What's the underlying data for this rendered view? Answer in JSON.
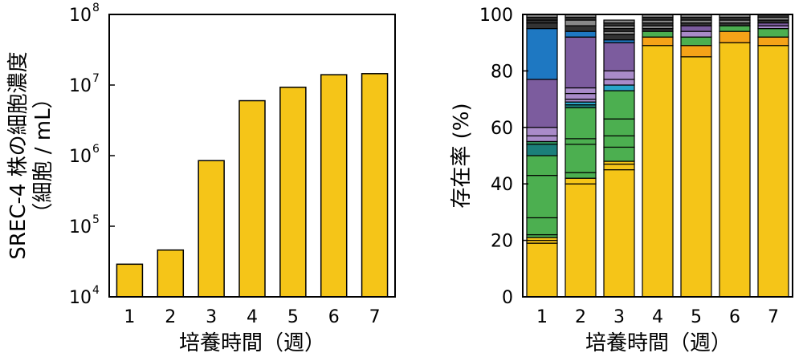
{
  "chart_data": [
    {
      "type": "bar",
      "xlabel": "培養時間（週）",
      "ylabel_line1": "SREC-4 株の細胞濃度",
      "ylabel_line2": "（細胞 / mL）",
      "y_scale": "log",
      "ylim": [
        10000,
        100000000
      ],
      "y_ticks": [
        {
          "base": "10",
          "exp": "4",
          "value": 10000
        },
        {
          "base": "10",
          "exp": "5",
          "value": 100000
        },
        {
          "base": "10",
          "exp": "6",
          "value": 1000000
        },
        {
          "base": "10",
          "exp": "7",
          "value": 10000000
        },
        {
          "base": "10",
          "exp": "8",
          "value": 100000000
        }
      ],
      "categories": [
        "1",
        "2",
        "3",
        "4",
        "5",
        "6",
        "7"
      ],
      "values": [
        29000,
        46000,
        850000,
        6000000,
        9300000,
        14000000,
        14500000
      ],
      "bar_color": "#F5C518",
      "grid": false
    },
    {
      "type": "bar",
      "stacked": true,
      "xlabel": "培養時間（週）",
      "ylabel": "存在率 (%)",
      "ylim": [
        0,
        100
      ],
      "y_ticks": [
        "0",
        "20",
        "40",
        "60",
        "80",
        "100"
      ],
      "categories": [
        "1",
        "2",
        "3",
        "4",
        "5",
        "6",
        "7"
      ],
      "grid": false,
      "stacks": [
        {
          "category": "1",
          "segments": [
            {
              "color": "#F5C518",
              "value": 19
            },
            {
              "color": "#F5C518",
              "value": 1
            },
            {
              "color": "#F5C518",
              "value": 1
            },
            {
              "color": "#4CAF50",
              "value": 1
            },
            {
              "color": "#4CAF50",
              "value": 6
            },
            {
              "color": "#4CAF50",
              "value": 15
            },
            {
              "color": "#4CAF50",
              "value": 7
            },
            {
              "color": "#1B7F7A",
              "value": 4
            },
            {
              "color": "#2E8B57",
              "value": 1
            },
            {
              "color": "#A98BC9",
              "value": 2
            },
            {
              "color": "#A98BC9",
              "value": 3
            },
            {
              "color": "#7C5C9E",
              "value": 17
            },
            {
              "color": "#1E78C2",
              "value": 18
            },
            {
              "color": "#333333",
              "value": 2
            },
            {
              "color": "#333333",
              "value": 1
            },
            {
              "color": "#333333",
              "value": 1
            },
            {
              "color": "#888888",
              "value": 1
            }
          ]
        },
        {
          "category": "2",
          "segments": [
            {
              "color": "#F5C518",
              "value": 40
            },
            {
              "color": "#F5C518",
              "value": 2
            },
            {
              "color": "#4CAF50",
              "value": 2
            },
            {
              "color": "#4CAF50",
              "value": 10
            },
            {
              "color": "#4CAF50",
              "value": 2
            },
            {
              "color": "#4CAF50",
              "value": 11
            },
            {
              "color": "#1B7F7A",
              "value": 1
            },
            {
              "color": "#29A6C9",
              "value": 1
            },
            {
              "color": "#A98BC9",
              "value": 1
            },
            {
              "color": "#A98BC9",
              "value": 2
            },
            {
              "color": "#A98BC9",
              "value": 2
            },
            {
              "color": "#7C5C9E",
              "value": 18
            },
            {
              "color": "#1E78C2",
              "value": 2
            },
            {
              "color": "#333333",
              "value": 2
            },
            {
              "color": "#888888",
              "value": 2
            },
            {
              "color": "#333333",
              "value": 1
            },
            {
              "color": "#888888",
              "value": 1
            }
          ]
        },
        {
          "category": "3",
          "segments": [
            {
              "color": "#F5C518",
              "value": 45
            },
            {
              "color": "#F5C518",
              "value": 2
            },
            {
              "color": "#F5C518",
              "value": 1
            },
            {
              "color": "#4CAF50",
              "value": 5
            },
            {
              "color": "#4CAF50",
              "value": 4
            },
            {
              "color": "#4CAF50",
              "value": 6
            },
            {
              "color": "#4CAF50",
              "value": 10
            },
            {
              "color": "#29A6C9",
              "value": 2
            },
            {
              "color": "#A98BC9",
              "value": 2
            },
            {
              "color": "#A98BC9",
              "value": 3
            },
            {
              "color": "#7C5C9E",
              "value": 10
            },
            {
              "color": "#1E78C2",
              "value": 1
            },
            {
              "color": "#333333",
              "value": 2
            },
            {
              "color": "#888888",
              "value": 1
            },
            {
              "color": "#333333",
              "value": 1
            },
            {
              "color": "#888888",
              "value": 1
            },
            {
              "color": "#333333",
              "value": 1
            },
            {
              "color": "#888888",
              "value": 1
            }
          ]
        },
        {
          "category": "4",
          "segments": [
            {
              "color": "#F5C518",
              "value": 89
            },
            {
              "color": "#F5A318",
              "value": 3
            },
            {
              "color": "#4CAF50",
              "value": 2
            },
            {
              "color": "#333333",
              "value": 1
            },
            {
              "color": "#888888",
              "value": 1
            },
            {
              "color": "#333333",
              "value": 1
            },
            {
              "color": "#888888",
              "value": 1
            },
            {
              "color": "#333333",
              "value": 1
            },
            {
              "color": "#888888",
              "value": 1
            }
          ]
        },
        {
          "category": "5",
          "segments": [
            {
              "color": "#F5C518",
              "value": 85
            },
            {
              "color": "#F5A318",
              "value": 4
            },
            {
              "color": "#4CAF50",
              "value": 3
            },
            {
              "color": "#A98BC9",
              "value": 2
            },
            {
              "color": "#7C5C9E",
              "value": 2
            },
            {
              "color": "#333333",
              "value": 1
            },
            {
              "color": "#888888",
              "value": 1
            },
            {
              "color": "#333333",
              "value": 1
            },
            {
              "color": "#888888",
              "value": 1
            }
          ]
        },
        {
          "category": "6",
          "segments": [
            {
              "color": "#F5C518",
              "value": 90
            },
            {
              "color": "#F5A318",
              "value": 4
            },
            {
              "color": "#4CAF50",
              "value": 2
            },
            {
              "color": "#333333",
              "value": 1
            },
            {
              "color": "#888888",
              "value": 1
            },
            {
              "color": "#333333",
              "value": 1
            },
            {
              "color": "#888888",
              "value": 1
            }
          ]
        },
        {
          "category": "7",
          "segments": [
            {
              "color": "#F5C518",
              "value": 89
            },
            {
              "color": "#F5A318",
              "value": 3
            },
            {
              "color": "#4CAF50",
              "value": 3
            },
            {
              "color": "#A98BC9",
              "value": 1
            },
            {
              "color": "#7C5C9E",
              "value": 1
            },
            {
              "color": "#333333",
              "value": 1
            },
            {
              "color": "#888888",
              "value": 1
            },
            {
              "color": "#333333",
              "value": 1
            }
          ]
        }
      ]
    }
  ]
}
